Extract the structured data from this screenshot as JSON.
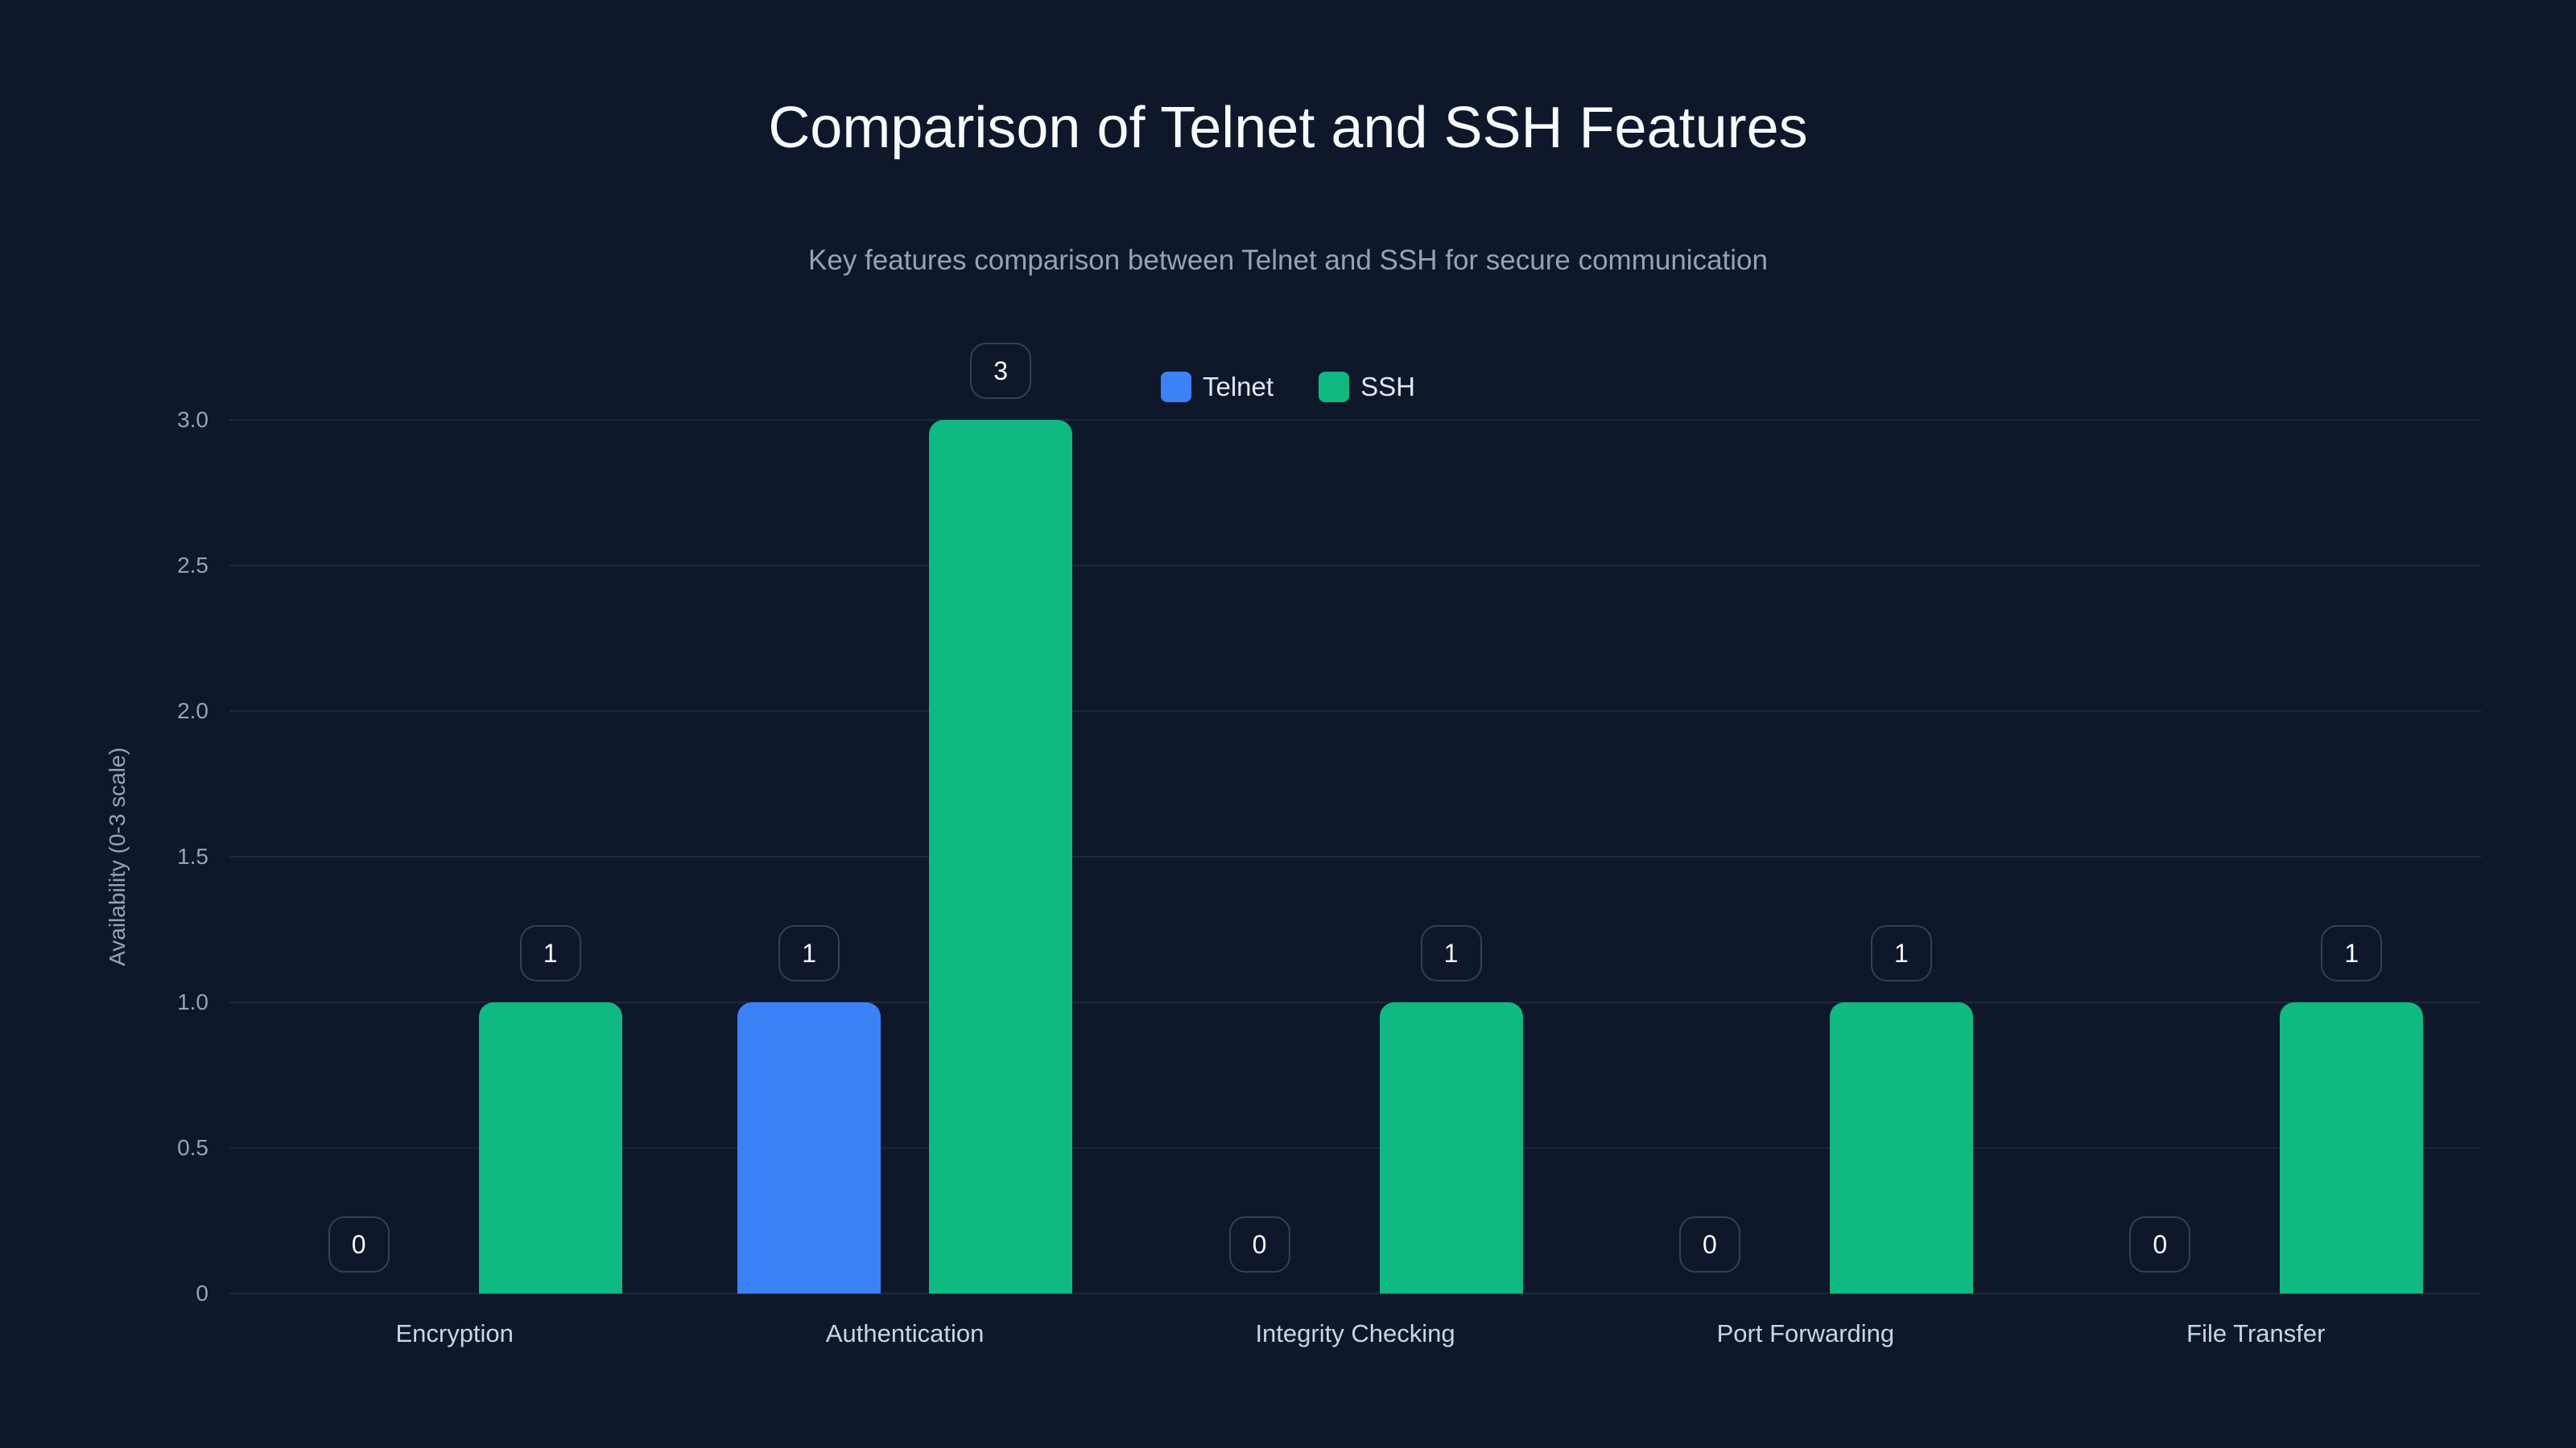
{
  "header": {
    "title": "Comparison of Telnet and SSH Features",
    "subtitle": "Key features comparison between Telnet and SSH for secure communication"
  },
  "legend": [
    {
      "label": "Telnet",
      "color": "#3b82f6"
    },
    {
      "label": "SSH",
      "color": "#10b981"
    }
  ],
  "axes": {
    "ylabel": "Availability (0-3 scale)",
    "yticks": [
      "0",
      "0.5",
      "1.0",
      "1.5",
      "2.0",
      "2.5",
      "3.0"
    ]
  },
  "chart_data": {
    "type": "bar",
    "title": "Comparison of Telnet and SSH Features",
    "subtitle": "Key features comparison between Telnet and SSH for secure communication",
    "xlabel": "",
    "ylabel": "Availability (0-3 scale)",
    "ylim": [
      0,
      3
    ],
    "grid": true,
    "legend_position": "top-center",
    "categories": [
      "Encryption",
      "Authentication",
      "Integrity Checking",
      "Port Forwarding",
      "File Transfer"
    ],
    "series": [
      {
        "name": "Telnet",
        "color": "#3b82f6",
        "values": [
          0,
          1,
          0,
          0,
          0
        ]
      },
      {
        "name": "SSH",
        "color": "#10b981",
        "values": [
          1,
          3,
          1,
          1,
          1
        ]
      }
    ]
  }
}
